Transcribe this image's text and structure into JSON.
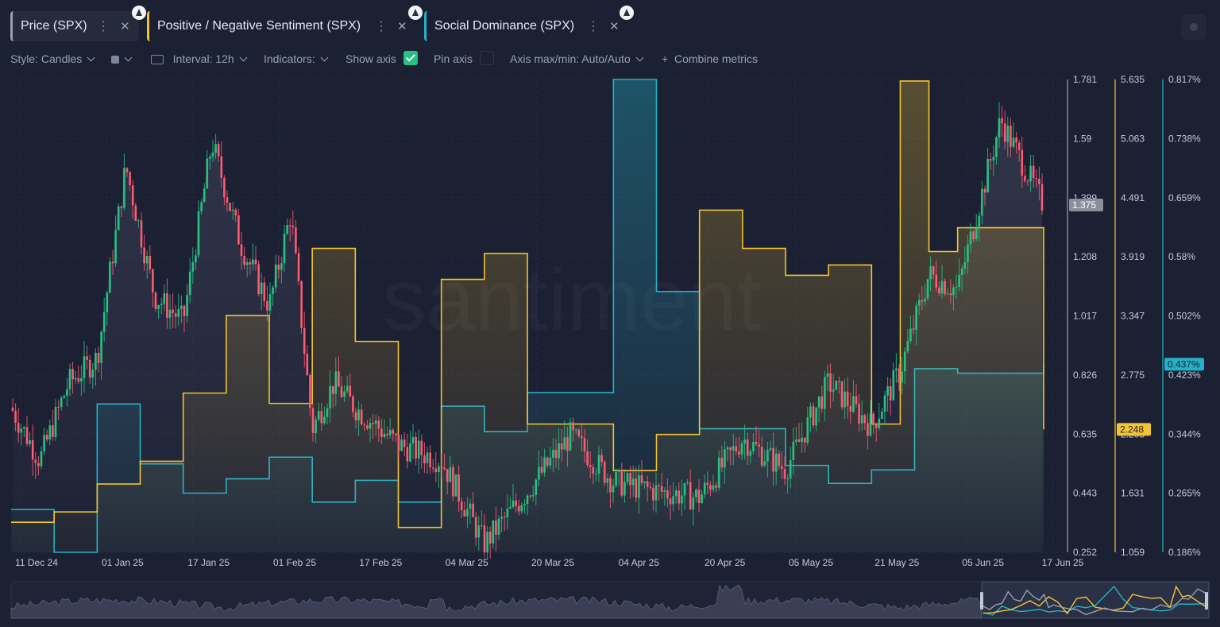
{
  "tabs": [
    {
      "label": "Price (SPX)",
      "color": "#9aa0b0",
      "icon": "ethereum-icon"
    },
    {
      "label": "Positive / Negative Sentiment (SPX)",
      "color": "#f4c430",
      "icon": "ethereum-icon"
    },
    {
      "label": "Social Dominance (SPX)",
      "color": "#23b2c8",
      "icon": "ethereum-icon"
    }
  ],
  "toolbar": {
    "style": "Style: Candles",
    "interval": "Interval: 12h",
    "indicators": "Indicators:",
    "show_axis": "Show axis",
    "show_axis_checked": true,
    "pin_axis": "Pin axis",
    "pin_axis_checked": false,
    "axis_maxmin": "Axis max/min: Auto/Auto",
    "combine": "Combine metrics"
  },
  "watermark": "santiment",
  "chart_data": {
    "type": "candlestick + area",
    "x_labels": [
      "11 Dec 24",
      "01 Jan 25",
      "17 Jan 25",
      "01 Feb 25",
      "17 Feb 25",
      "04 Mar 25",
      "20 Mar 25",
      "04 Apr 25",
      "20 Apr 25",
      "05 May 25",
      "21 May 25",
      "05 Jun 25",
      "17 Jun 25"
    ],
    "axes": [
      {
        "name": "Price (SPX)",
        "color": "#9aa0b0",
        "ticks": [
          "1.781",
          "1.59",
          "1.399",
          "1.208",
          "1.017",
          "0.826",
          "0.635",
          "0.443",
          "0.252"
        ],
        "range": [
          0.252,
          1.781
        ],
        "current": "1.375"
      },
      {
        "name": "Positive / Negative Sentiment (SPX)",
        "color": "#f4c430",
        "ticks": [
          "5.635",
          "5.063",
          "4.491",
          "3.919",
          "3.347",
          "2.775",
          "2.203",
          "1.631",
          "1.059"
        ],
        "range": [
          1.059,
          5.635
        ],
        "current": "2.248"
      },
      {
        "name": "Social Dominance (SPX)",
        "color": "#23b2c8",
        "ticks": [
          "0.817%",
          "0.738%",
          "0.659%",
          "0.58%",
          "0.502%",
          "0.423%",
          "0.344%",
          "0.265%",
          "0.186%"
        ],
        "range": [
          0.186,
          0.817
        ],
        "current": "0.437%"
      }
    ],
    "price_path": [
      {
        "x": "11 Dec 24",
        "y": 0.72
      },
      {
        "x": "",
        "y": 0.55
      },
      {
        "x": "",
        "y": 0.8
      },
      {
        "x": "01 Jan 25",
        "y": 0.88
      },
      {
        "x": "",
        "y": 1.5
      },
      {
        "x": "",
        "y": 1.08
      },
      {
        "x": "17 Jan 25",
        "y": 1.0
      },
      {
        "x": "",
        "y": 1.58
      },
      {
        "x": "",
        "y": 1.25
      },
      {
        "x": "01 Feb 25",
        "y": 1.05
      },
      {
        "x": "",
        "y": 1.35
      },
      {
        "x": "",
        "y": 0.65
      },
      {
        "x": "",
        "y": 0.8
      },
      {
        "x": "17 Feb 25",
        "y": 0.72
      },
      {
        "x": "",
        "y": 0.6
      },
      {
        "x": "04 Mar 25",
        "y": 0.55
      },
      {
        "x": "",
        "y": 0.28
      },
      {
        "x": "20 Mar 25",
        "y": 0.45
      },
      {
        "x": "",
        "y": 0.63
      },
      {
        "x": "04 Apr 25",
        "y": 0.48
      },
      {
        "x": "",
        "y": 0.45
      },
      {
        "x": "20 Apr 25",
        "y": 0.43
      },
      {
        "x": "",
        "y": 0.62
      },
      {
        "x": "05 May 25",
        "y": 0.52
      },
      {
        "x": "",
        "y": 0.8
      },
      {
        "x": "21 May 25",
        "y": 0.66
      },
      {
        "x": "",
        "y": 0.84
      },
      {
        "x": "",
        "y": 1.15
      },
      {
        "x": "05 Jun 25",
        "y": 1.1
      },
      {
        "x": "",
        "y": 1.65
      },
      {
        "x": "17 Jun 25",
        "y": 1.375
      }
    ],
    "sentiment_steps": [
      {
        "x": "11 Dec 24",
        "y": 1.35
      },
      {
        "x": "",
        "y": 1.45
      },
      {
        "x": "01 Jan 25",
        "y": 1.72
      },
      {
        "x": "",
        "y": 1.94
      },
      {
        "x": "17 Jan 25",
        "y": 2.6
      },
      {
        "x": "",
        "y": 3.35
      },
      {
        "x": "01 Feb 25",
        "y": 2.5
      },
      {
        "x": "",
        "y": 4.0
      },
      {
        "x": "17 Feb 25",
        "y": 3.1
      },
      {
        "x": "",
        "y": 1.3
      },
      {
        "x": "04 Mar 25",
        "y": 3.7
      },
      {
        "x": "",
        "y": 3.95
      },
      {
        "x": "20 Mar 25",
        "y": 2.3
      },
      {
        "x": "04 Apr 25",
        "y": 1.85
      },
      {
        "x": "",
        "y": 2.2
      },
      {
        "x": "20 Apr 25",
        "y": 4.37
      },
      {
        "x": "",
        "y": 4.0
      },
      {
        "x": "05 May 25",
        "y": 3.74
      },
      {
        "x": "",
        "y": 3.84
      },
      {
        "x": "21 May 25",
        "y": 2.3
      },
      {
        "x": "",
        "y": 5.62
      },
      {
        "x": "",
        "y": 3.97
      },
      {
        "x": "05 Jun 25",
        "y": 4.2
      },
      {
        "x": "17 Jun 25",
        "y": 2.248
      }
    ],
    "dominance_steps": [
      {
        "x": "11 Dec 24",
        "y": 0.243
      },
      {
        "x": "",
        "y": 0.186
      },
      {
        "x": "01 Jan 25",
        "y": 0.384
      },
      {
        "x": "",
        "y": 0.304
      },
      {
        "x": "17 Jan 25",
        "y": 0.265
      },
      {
        "x": "",
        "y": 0.284
      },
      {
        "x": "01 Feb 25",
        "y": 0.313
      },
      {
        "x": "",
        "y": 0.253
      },
      {
        "x": "17 Feb 25",
        "y": 0.282
      },
      {
        "x": "",
        "y": 0.253
      },
      {
        "x": "04 Mar 25",
        "y": 0.381
      },
      {
        "x": "",
        "y": 0.347
      },
      {
        "x": "20 Mar 25",
        "y": 0.399
      },
      {
        "x": "04 Apr 25",
        "y": 0.817
      },
      {
        "x": "",
        "y": 0.534
      },
      {
        "x": "20 Apr 25",
        "y": 0.351
      },
      {
        "x": "05 May 25",
        "y": 0.302
      },
      {
        "x": "",
        "y": 0.278
      },
      {
        "x": "21 May 25",
        "y": 0.296
      },
      {
        "x": "",
        "y": 0.431
      },
      {
        "x": "05 Jun 25",
        "y": 0.425
      },
      {
        "x": "17 Jun 25",
        "y": 0.437
      }
    ]
  }
}
